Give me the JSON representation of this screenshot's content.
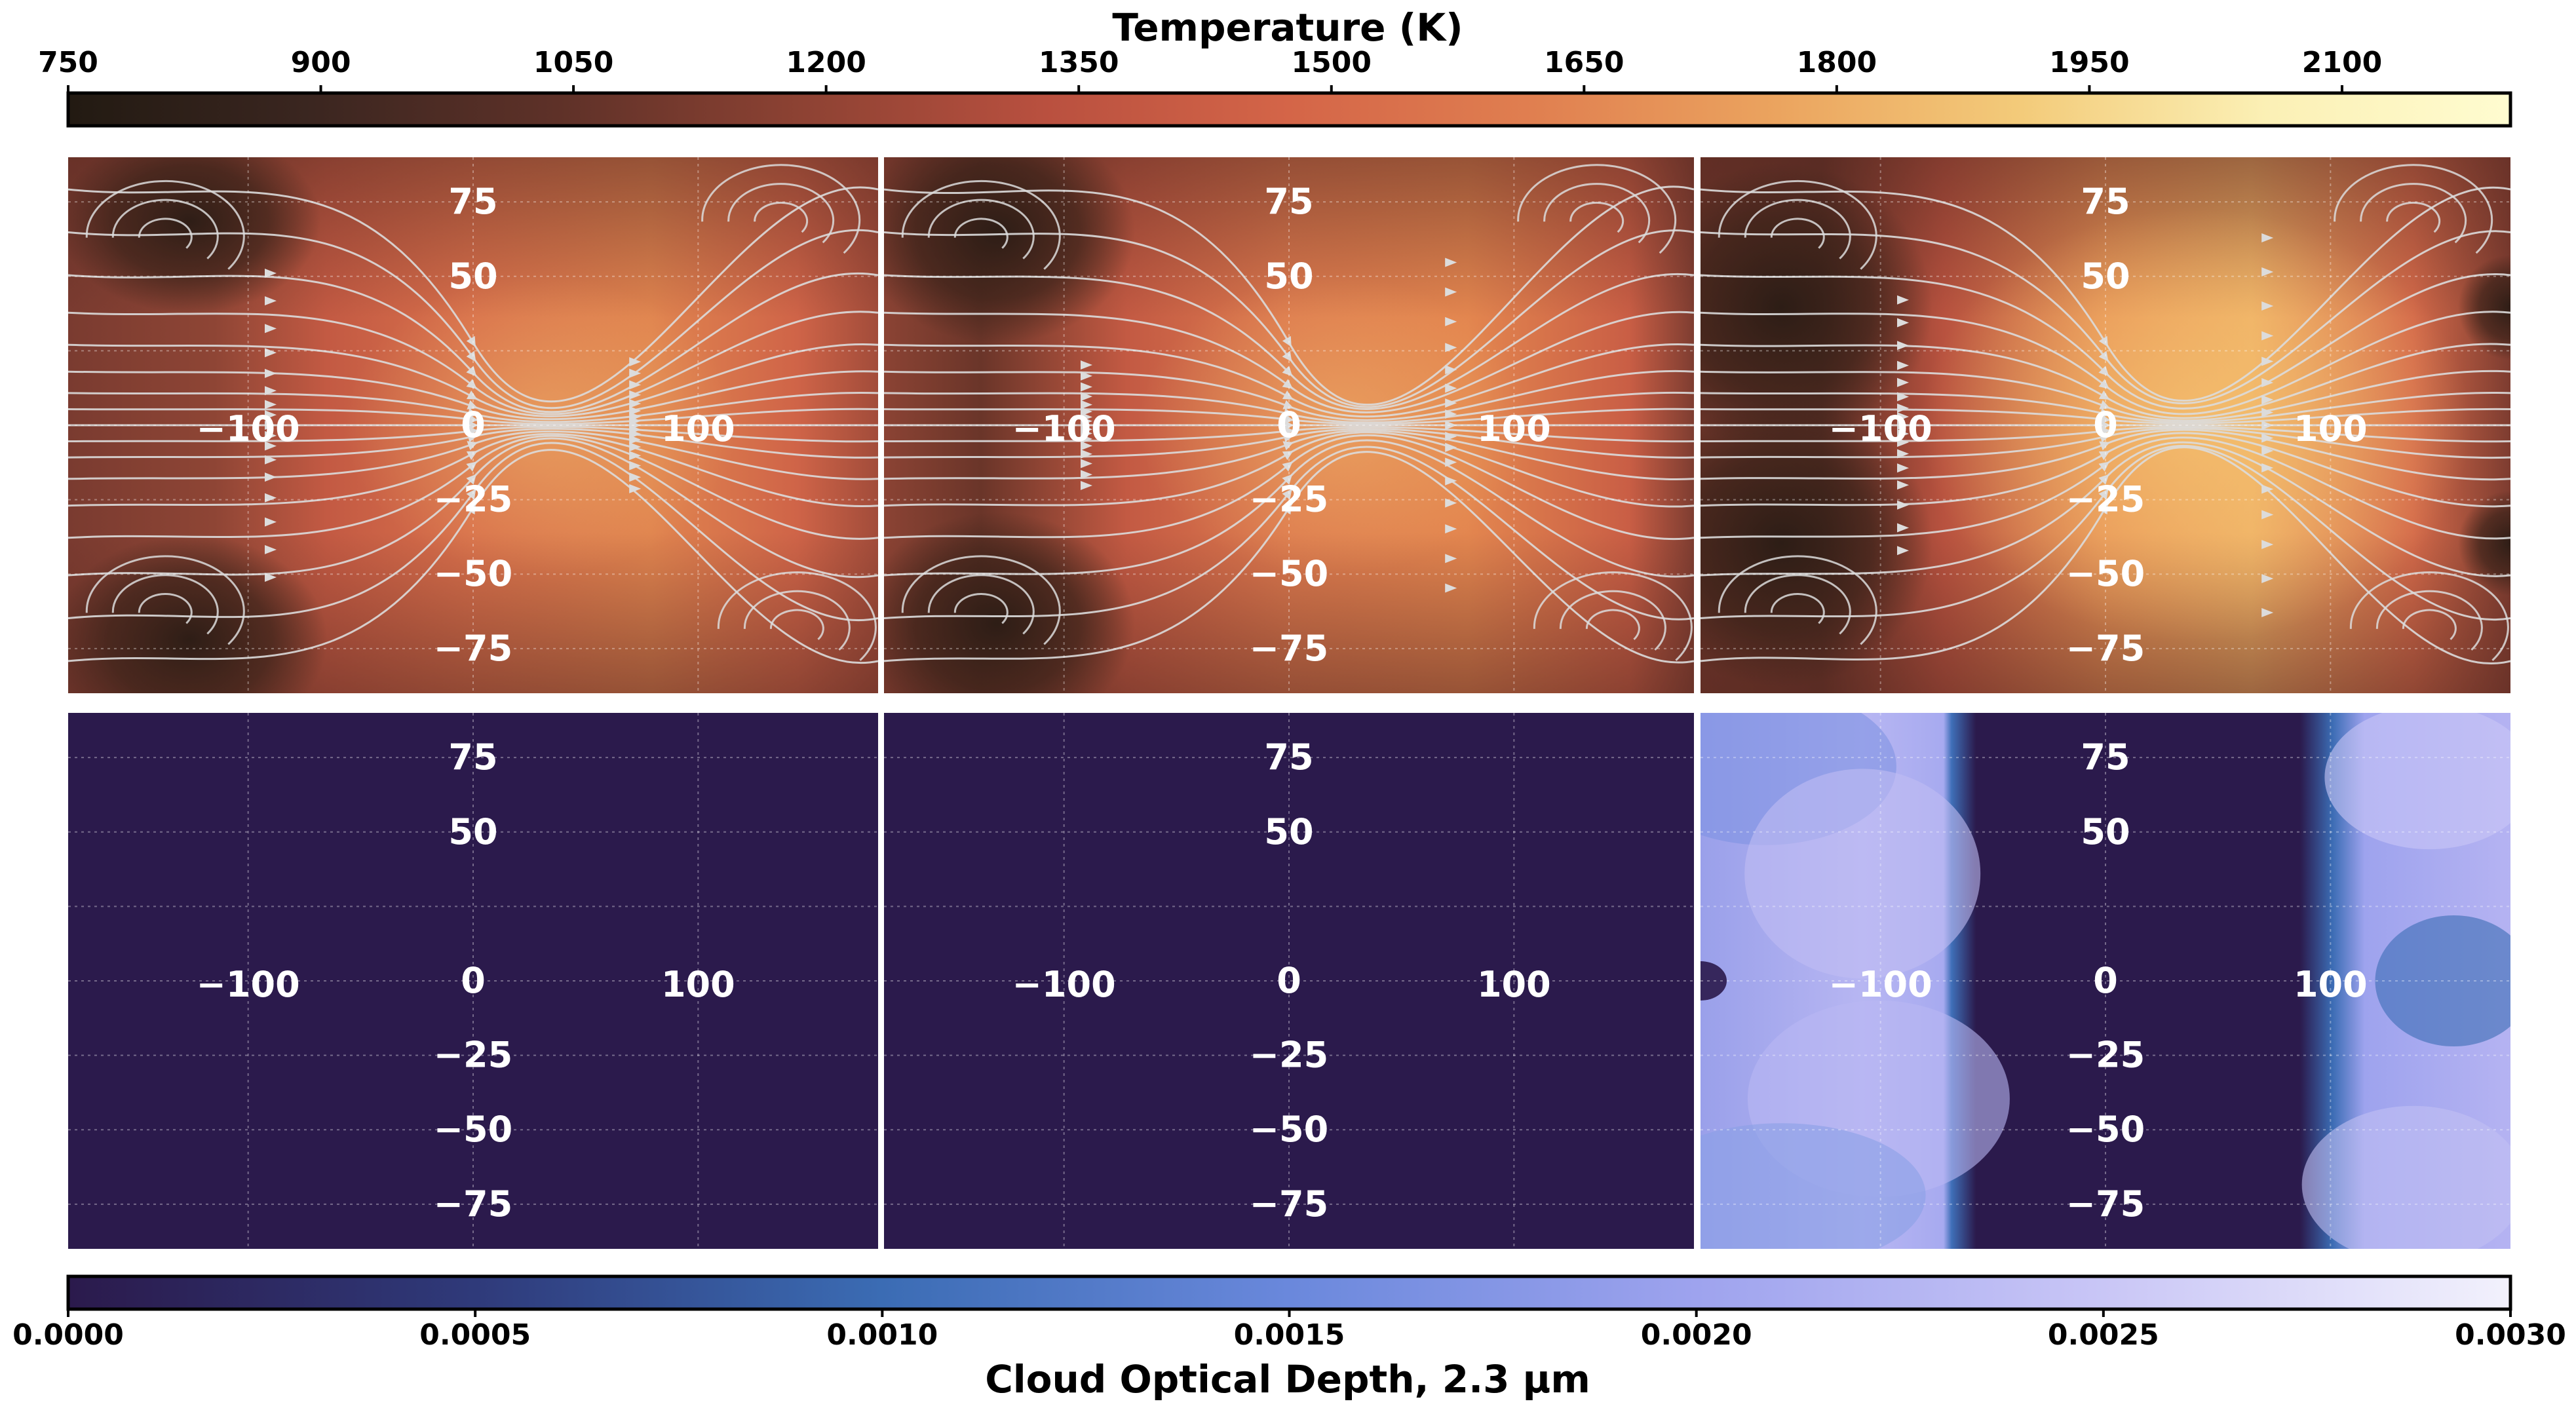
{
  "chart_data": {
    "type": "heatmap",
    "layout": "2 rows x 3 columns of latitude-longitude maps",
    "axes": {
      "x_ticks": [
        -100,
        0,
        100
      ],
      "x_tick_labels": [
        "−100",
        "0",
        "100"
      ],
      "y_ticks": [
        75,
        50,
        0,
        -25,
        -50,
        -75
      ],
      "y_tick_labels": [
        "75",
        "50",
        "0",
        "−25",
        "−50",
        "−75"
      ],
      "xlim": [
        -180,
        180
      ],
      "ylim": [
        -90,
        90
      ],
      "grid": true
    },
    "temperature_colorbar": {
      "title": "Temperature (K)",
      "range": [
        750,
        2200
      ],
      "ticks": [
        750,
        900,
        1050,
        1200,
        1350,
        1500,
        1650,
        1800,
        1950,
        2100
      ],
      "tick_labels": [
        "750",
        "900",
        "1050",
        "1200",
        "1350",
        "1500",
        "1650",
        "1800",
        "1950",
        "2100"
      ],
      "colors": [
        "#221a12",
        "#3b2620",
        "#5e3128",
        "#8d4233",
        "#b9503f",
        "#d46548",
        "#e07f50",
        "#eba45f",
        "#f3cb7a",
        "#fbf0b5",
        "#fffcd0"
      ],
      "position": "top"
    },
    "cloud_colorbar": {
      "title": "Cloud Optical Depth, 2.3 μm",
      "range": [
        0,
        0.003
      ],
      "ticks": [
        0,
        0.0005,
        0.001,
        0.0015,
        0.002,
        0.0025,
        0.003
      ],
      "tick_labels": [
        "0.0000",
        "0.0005",
        "0.0010",
        "0.0015",
        "0.0020",
        "0.0025",
        "0.0030"
      ],
      "colors": [
        "#2b1a4c",
        "#2f3a7a",
        "#3b6cb4",
        "#6a88dc",
        "#9ea3ee",
        "#c9c6f6",
        "#f2f1fc"
      ],
      "position": "bottom"
    },
    "temperature_panels": [
      {
        "nightside_min_K": 850,
        "dayside_max_K": 1620,
        "hotspot_lon": 30
      },
      {
        "nightside_min_K": 820,
        "dayside_max_K": 1640,
        "hotspot_lon": 20
      },
      {
        "nightside_min_K": 800,
        "dayside_max_K": 1800,
        "hotspot_lon": 40
      }
    ],
    "cloud_panels": [
      {
        "max_optical_depth": 0
      },
      {
        "max_optical_depth": 0
      },
      {
        "max_optical_depth": 0.0025,
        "cloudy_longitudes": [
          [
            -180,
            -45
          ],
          [
            105,
            180
          ]
        ]
      }
    ]
  }
}
